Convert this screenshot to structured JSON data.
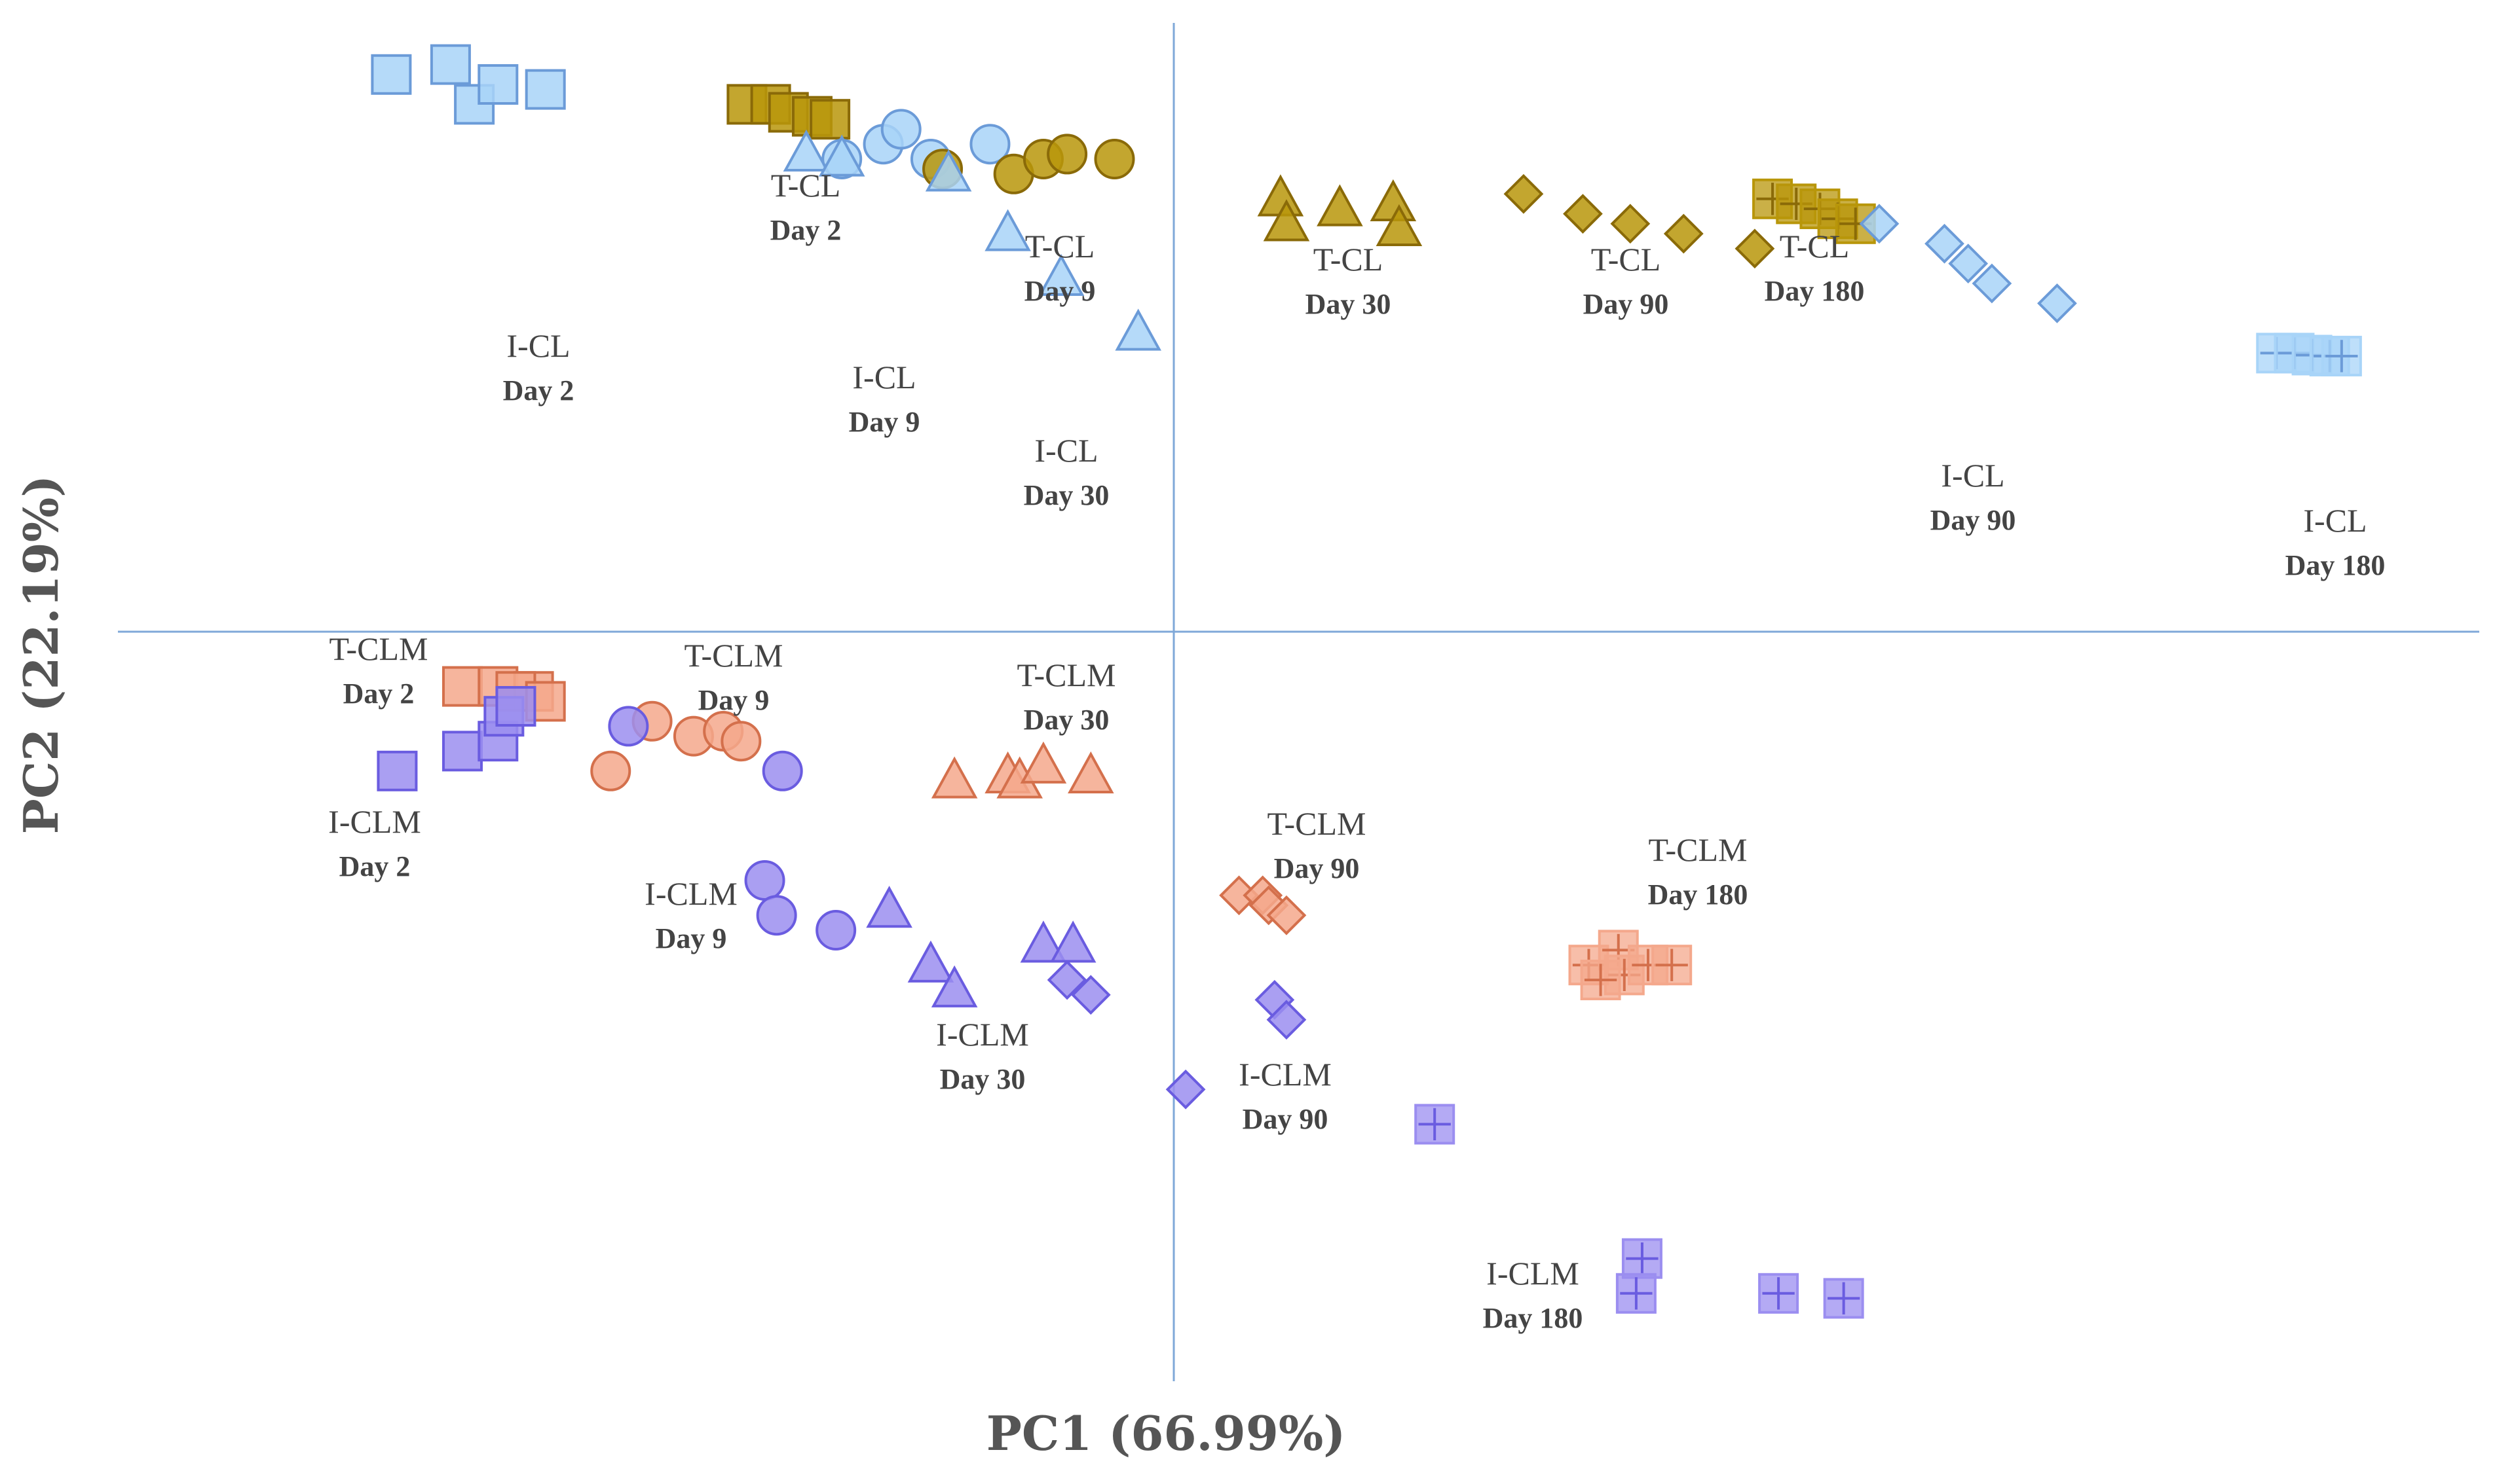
{
  "chart_data": {
    "type": "scatter",
    "title": "",
    "xlabel": "PC1 (66.99%)",
    "ylabel": "PC2 (22.19%)",
    "xlim": [
      -10,
      10
    ],
    "ylim": [
      -7,
      6
    ],
    "grid": false,
    "legend": "none",
    "colors": {
      "T-CL": "#b8960a",
      "I-CL": "#a8d4f8",
      "T-CLM": "#f4a88c",
      "I-CLM": "#9b8ef0"
    },
    "series": [
      {
        "name": "I-CL Day 2",
        "label": "I-CL",
        "day": "Day 2",
        "color": "#a8d4f8",
        "stroke": "#6b9bd8",
        "marker": "square",
        "points": [
          [
            -6.6,
            5.6
          ],
          [
            -6.1,
            5.7
          ],
          [
            -5.9,
            5.3
          ],
          [
            -5.7,
            5.5
          ],
          [
            -5.3,
            5.45
          ]
        ]
      },
      {
        "name": "T-CL Day 2",
        "label": "T-CL",
        "day": "Day 2",
        "color": "#b8960a",
        "stroke": "#8a6a08",
        "marker": "square",
        "points": [
          [
            -3.6,
            5.3
          ],
          [
            -3.4,
            5.3
          ],
          [
            -3.25,
            5.22
          ],
          [
            -3.05,
            5.18
          ],
          [
            -2.9,
            5.15
          ]
        ]
      },
      {
        "name": "I-CL Day 9",
        "label": "I-CL",
        "day": "Day 9",
        "color": "#a8d4f8",
        "stroke": "#6b9bd8",
        "marker": "circle",
        "points": [
          [
            -2.8,
            4.75
          ],
          [
            -2.45,
            4.9
          ],
          [
            -2.3,
            5.05
          ],
          [
            -2.05,
            4.75
          ],
          [
            -1.55,
            4.9
          ]
        ]
      },
      {
        "name": "T-CL Day 9",
        "label": "T-CL",
        "day": "Day 9",
        "color": "#b8960a",
        "stroke": "#8a6a08",
        "marker": "circle",
        "points": [
          [
            -1.95,
            4.65
          ],
          [
            -1.35,
            4.6
          ],
          [
            -1.1,
            4.75
          ],
          [
            -0.9,
            4.8
          ],
          [
            -0.5,
            4.75
          ]
        ]
      },
      {
        "name": "I-CL Day 30",
        "label": "I-CL",
        "day": "Day 30",
        "color": "#a8d4f8",
        "stroke": "#6b9bd8",
        "marker": "triangle",
        "points": [
          [
            -3.1,
            4.8
          ],
          [
            -2.8,
            4.75
          ],
          [
            -1.9,
            4.6
          ],
          [
            -1.4,
            4.0
          ],
          [
            -0.95,
            3.55
          ],
          [
            -0.3,
            3.0
          ]
        ]
      },
      {
        "name": "T-CL Day 30",
        "label": "T-CL",
        "day": "Day 30",
        "color": "#b8960a",
        "stroke": "#8a6a08",
        "marker": "triangle",
        "points": [
          [
            0.9,
            4.35
          ],
          [
            0.95,
            4.1
          ],
          [
            1.4,
            4.25
          ],
          [
            1.85,
            4.3
          ],
          [
            1.9,
            4.05
          ]
        ]
      },
      {
        "name": "T-CL Day 90",
        "label": "T-CL",
        "day": "Day 90",
        "color": "#b8960a",
        "stroke": "#8a6a08",
        "marker": "diamond",
        "points": [
          [
            2.95,
            4.4
          ],
          [
            3.45,
            4.2
          ],
          [
            3.85,
            4.1
          ],
          [
            4.3,
            4.0
          ],
          [
            4.9,
            3.85
          ]
        ]
      },
      {
        "name": "T-CL Day 180",
        "label": "T-CL",
        "day": "Day 180",
        "color": "#b8960a",
        "stroke": "#8a6a08",
        "marker": "plus-square",
        "points": [
          [
            5.05,
            4.35
          ],
          [
            5.25,
            4.3
          ],
          [
            5.45,
            4.25
          ],
          [
            5.6,
            4.15
          ],
          [
            5.75,
            4.1
          ]
        ]
      },
      {
        "name": "I-CL Day 90",
        "label": "I-CL",
        "day": "Day 90",
        "color": "#a8d4f8",
        "stroke": "#6b9bd8",
        "marker": "diamond",
        "points": [
          [
            5.95,
            4.1
          ],
          [
            6.5,
            3.9
          ],
          [
            6.7,
            3.7
          ],
          [
            6.9,
            3.5
          ],
          [
            7.45,
            3.3
          ]
        ]
      },
      {
        "name": "I-CL Day 180",
        "label": "I-CL",
        "day": "Day 180",
        "color": "#a8d4f8",
        "stroke": "#6b9bd8",
        "marker": "plus-square",
        "points": [
          [
            9.3,
            2.8
          ],
          [
            9.45,
            2.8
          ],
          [
            9.6,
            2.78
          ],
          [
            9.75,
            2.77
          ],
          [
            9.85,
            2.77
          ]
        ]
      },
      {
        "name": "T-CLM Day 2",
        "label": "T-CLM",
        "day": "Day 2",
        "color": "#f4a88c",
        "stroke": "#d4704c",
        "marker": "square",
        "points": [
          [
            -6.0,
            -0.55
          ],
          [
            -5.7,
            -0.55
          ],
          [
            -5.4,
            -0.6
          ],
          [
            -5.55,
            -0.6
          ],
          [
            -5.3,
            -0.7
          ]
        ]
      },
      {
        "name": "I-CLM Day 2",
        "label": "I-CLM",
        "day": "Day 2",
        "color": "#9b8ef0",
        "stroke": "#6a5ce0",
        "marker": "square",
        "points": [
          [
            -6.55,
            -1.4
          ],
          [
            -6.0,
            -1.2
          ],
          [
            -5.7,
            -1.1
          ],
          [
            -5.65,
            -0.85
          ],
          [
            -5.55,
            -0.75
          ]
        ]
      },
      {
        "name": "T-CLM Day 9",
        "label": "T-CLM",
        "day": "Day 9",
        "color": "#f4a88c",
        "stroke": "#d4704c",
        "marker": "circle",
        "points": [
          [
            -4.75,
            -1.4
          ],
          [
            -4.4,
            -0.9
          ],
          [
            -4.05,
            -1.05
          ],
          [
            -3.8,
            -1.0
          ],
          [
            -3.65,
            -1.1
          ]
        ]
      },
      {
        "name": "I-CLM Day 9",
        "label": "I-CLM",
        "day": "Day 9",
        "color": "#9b8ef0",
        "stroke": "#6a5ce0",
        "marker": "circle",
        "points": [
          [
            -4.6,
            -0.95
          ],
          [
            -3.3,
            -1.4
          ],
          [
            -3.45,
            -2.5
          ],
          [
            -3.35,
            -2.85
          ],
          [
            -2.85,
            -3.0
          ]
        ]
      },
      {
        "name": "T-CLM Day 30",
        "label": "T-CLM",
        "day": "Day 30",
        "color": "#f4a88c",
        "stroke": "#d4704c",
        "marker": "triangle",
        "points": [
          [
            -1.85,
            -1.5
          ],
          [
            -1.4,
            -1.45
          ],
          [
            -1.3,
            -1.5
          ],
          [
            -1.1,
            -1.35
          ],
          [
            -0.7,
            -1.45
          ]
        ]
      },
      {
        "name": "I-CLM Day 30",
        "label": "I-CLM",
        "day": "Day 30",
        "color": "#9b8ef0",
        "stroke": "#6a5ce0",
        "marker": "triangle",
        "points": [
          [
            -2.4,
            -2.8
          ],
          [
            -2.05,
            -3.35
          ],
          [
            -1.85,
            -3.6
          ],
          [
            -1.1,
            -3.15
          ],
          [
            -0.85,
            -3.15
          ]
        ]
      },
      {
        "name": "I-CLM Day 90",
        "label": "I-CLM",
        "day": "Day 90",
        "color": "#9b8ef0",
        "stroke": "#6a5ce0",
        "marker": "diamond",
        "points": [
          [
            -0.9,
            -3.5
          ],
          [
            -0.7,
            -3.65
          ],
          [
            0.85,
            -3.7
          ],
          [
            0.95,
            -3.9
          ],
          [
            0.1,
            -4.6
          ]
        ]
      },
      {
        "name": "T-CLM Day 90",
        "label": "T-CLM",
        "day": "Day 90",
        "color": "#f4a88c",
        "stroke": "#d4704c",
        "marker": "diamond",
        "points": [
          [
            0.55,
            -2.65
          ],
          [
            0.75,
            -2.65
          ],
          [
            0.8,
            -2.75
          ],
          [
            0.95,
            -2.85
          ]
        ]
      },
      {
        "name": "T-CLM Day 180",
        "label": "T-CLM",
        "day": "Day 180",
        "color": "#f4a88c",
        "stroke": "#d4704c",
        "marker": "plus-square",
        "points": [
          [
            3.5,
            -3.35
          ],
          [
            3.75,
            -3.2
          ],
          [
            3.8,
            -3.45
          ],
          [
            4.0,
            -3.35
          ],
          [
            4.2,
            -3.35
          ],
          [
            3.6,
            -3.5
          ]
        ]
      },
      {
        "name": "I-CLM Day 180",
        "label": "I-CLM",
        "day": "Day 180",
        "color": "#9b8ef0",
        "stroke": "#6a5ce0",
        "marker": "plus-square",
        "points": [
          [
            2.2,
            -4.95
          ],
          [
            3.95,
            -6.3
          ],
          [
            3.9,
            -6.65
          ],
          [
            5.1,
            -6.65
          ],
          [
            5.65,
            -6.7
          ]
        ]
      }
    ]
  }
}
